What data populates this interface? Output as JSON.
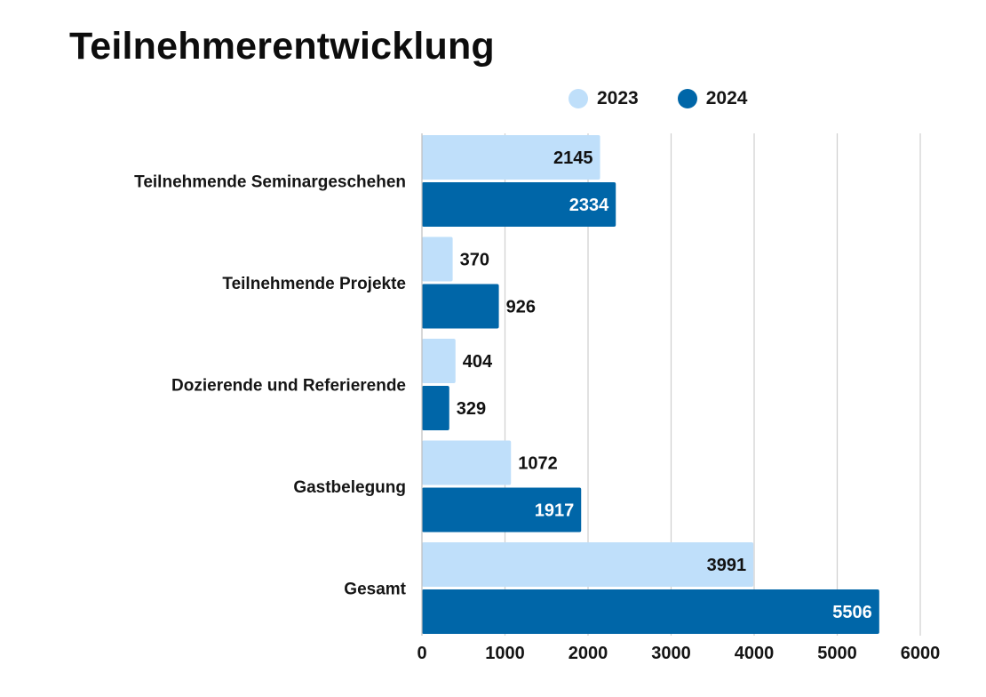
{
  "chart_data": {
    "type": "bar",
    "orientation": "horizontal",
    "title": "Teilnehmerentwicklung",
    "categories": [
      "Teilnehmende Seminargeschehen",
      "Teilnehmende Projekte",
      "Dozierende und Referierende",
      "Gastbelegung",
      "Gesamt"
    ],
    "series": [
      {
        "name": "2023",
        "color": "#bfdffa",
        "label_color": "#111111",
        "values": [
          2145,
          370,
          404,
          1072,
          3991
        ]
      },
      {
        "name": "2024",
        "color": "#0066a8",
        "label_color": "#ffffff",
        "values": [
          2334,
          926,
          329,
          1917,
          5506
        ]
      }
    ],
    "xlim": [
      0,
      6000
    ],
    "xticks": [
      0,
      1000,
      2000,
      3000,
      4000,
      5000,
      6000
    ],
    "grid": true,
    "legend_position": "top-right",
    "data_labels": true
  }
}
